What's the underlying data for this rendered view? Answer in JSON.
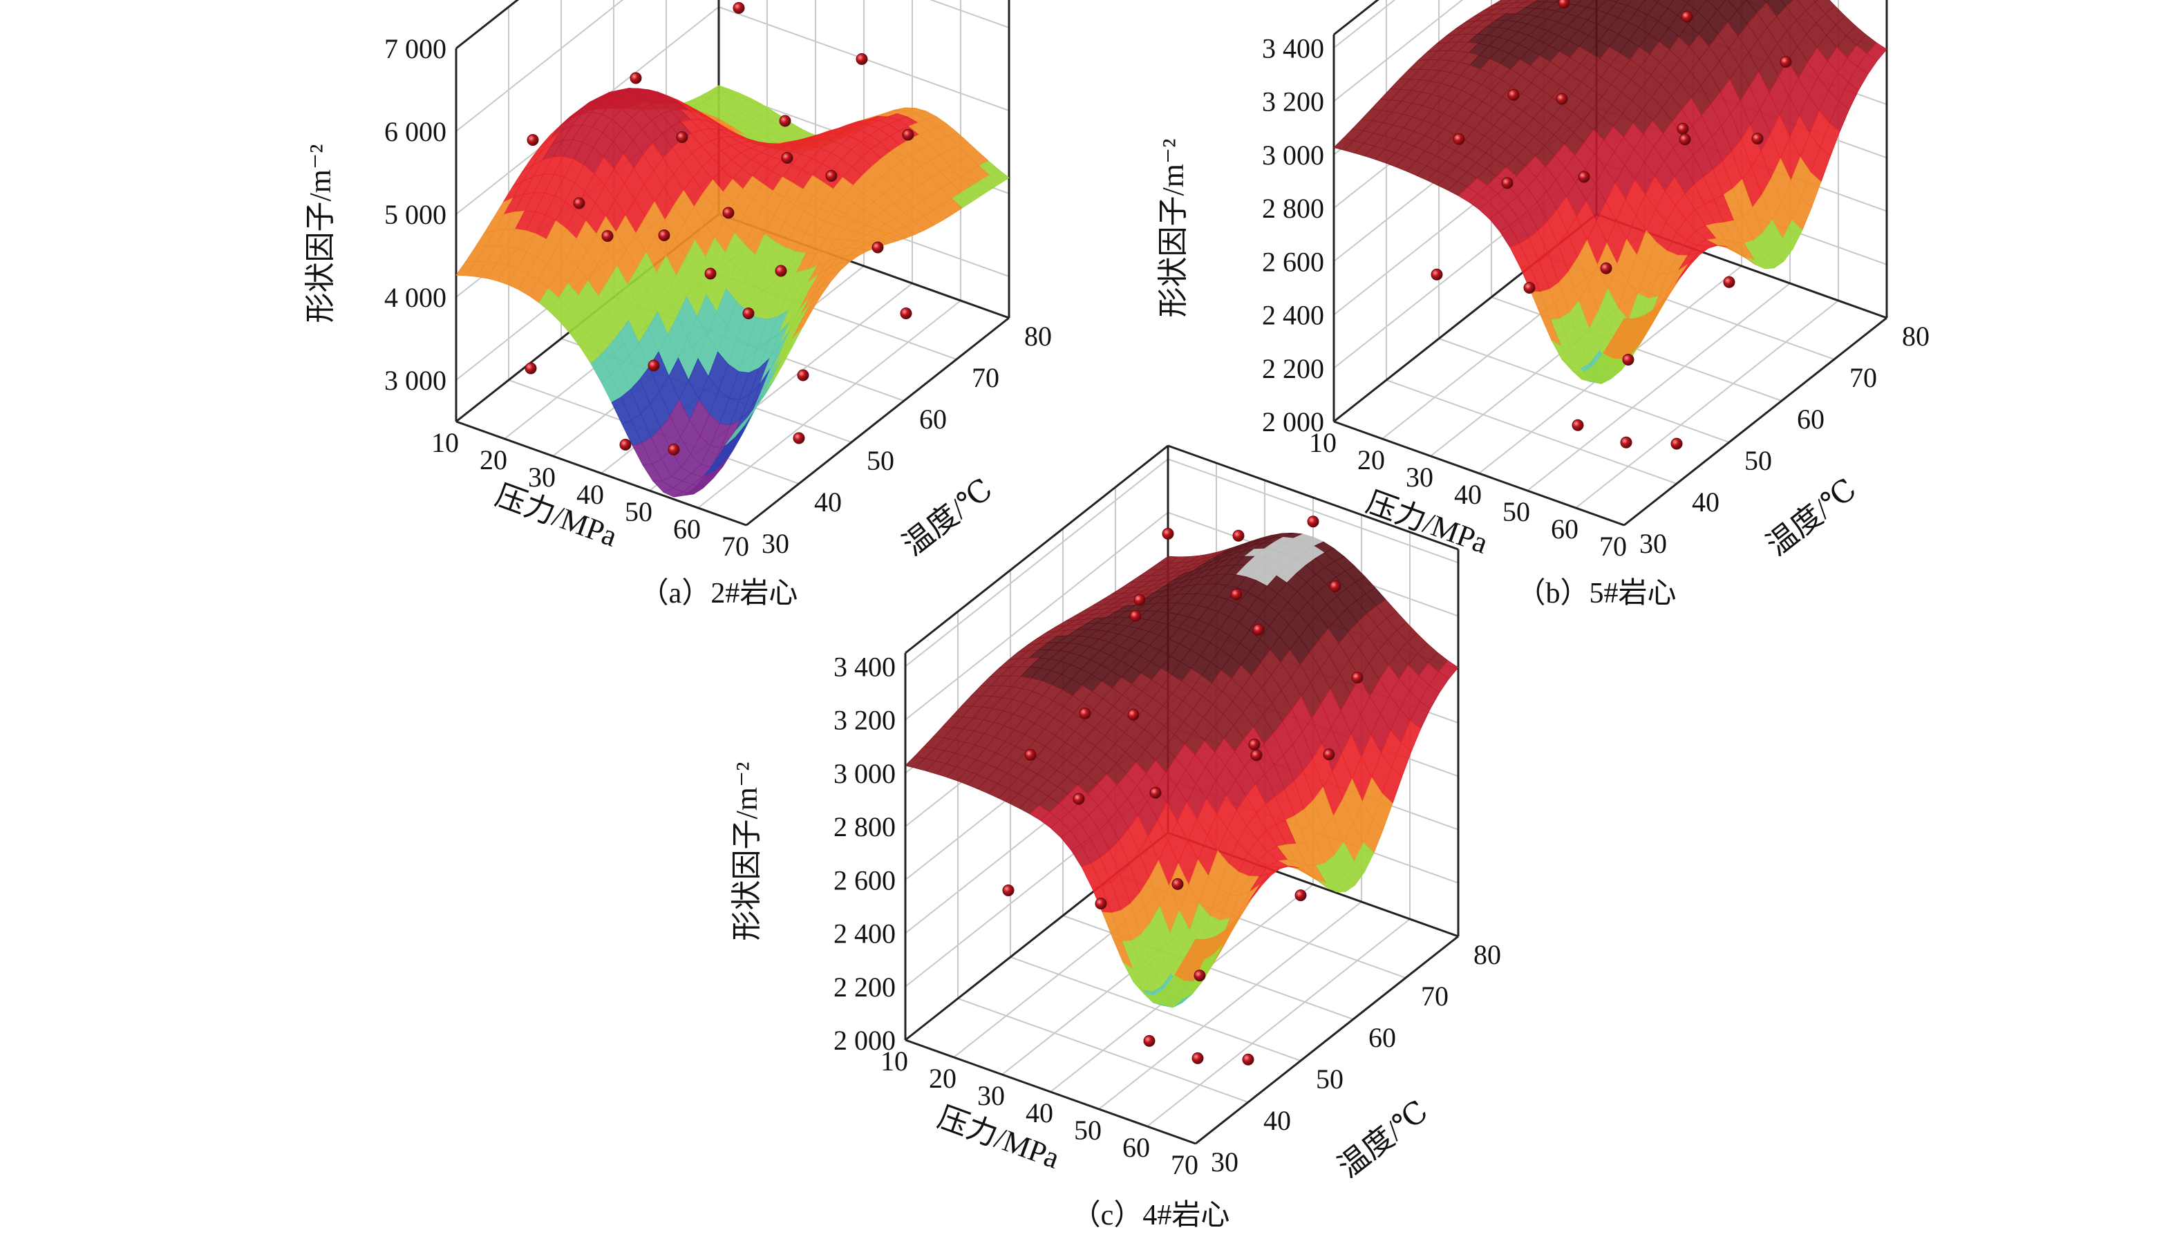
{
  "figure": {
    "panels": [
      {
        "caption": "（a）2#岩心"
      },
      {
        "caption": "（b）5#岩心"
      },
      {
        "caption": "（c）4#岩心"
      }
    ]
  },
  "colors": {
    "grid": "#c8c8c8",
    "axis": "#222222",
    "point_fill": "#c0141c",
    "point_edge": "#6b0a0e",
    "bands": [
      "#7b2a8e",
      "#2f3fb0",
      "#5cc8a8",
      "#9bd63a",
      "#f08c28",
      "#e8242a",
      "#c21a30",
      "#8a1a22",
      "#5a141a",
      "#bcbcbc"
    ]
  },
  "chart_data": [
    {
      "type": "surface3d",
      "title": "（a）2#岩心",
      "xlabel": "压力/MPa",
      "ylabel": "温度/℃",
      "zlabel": "形状因子/m⁻²",
      "x_ticks": [
        "10",
        "20",
        "30",
        "40",
        "50",
        "60",
        "70"
      ],
      "y_ticks": [
        "30",
        "40",
        "50",
        "60",
        "70",
        "80"
      ],
      "z_ticks": [
        "3 000",
        "4 000",
        "5 000",
        "6 000",
        "7 000"
      ],
      "xlim": [
        10,
        70
      ],
      "ylim": [
        30,
        80
      ],
      "zlim": [
        2500,
        7000
      ],
      "surface_model": [
        {
          "cx": 20,
          "cy": 50,
          "a": 1500,
          "s": 12
        },
        {
          "cx": 55,
          "cy": 35,
          "a": -1800,
          "s": 10
        },
        {
          "cx": 45,
          "cy": 70,
          "a": 1200,
          "s": 14
        },
        {
          "cx": 70,
          "cy": 45,
          "a": 900,
          "s": 10
        },
        {
          "cx": 35,
          "cy": 75,
          "a": -900,
          "s": 10
        }
      ],
      "surface_base": 4000,
      "points": [
        [
          10,
          80,
          6900
        ],
        [
          15,
          40,
          5500
        ],
        [
          20,
          55,
          5600
        ],
        [
          25,
          70,
          5800
        ],
        [
          30,
          35,
          5300
        ],
        [
          35,
          50,
          5450
        ],
        [
          40,
          65,
          5000
        ],
        [
          45,
          75,
          5350
        ],
        [
          50,
          45,
          5100
        ],
        [
          55,
          60,
          4900
        ],
        [
          60,
          70,
          5000
        ],
        [
          65,
          35,
          4700
        ],
        [
          70,
          55,
          4600
        ],
        [
          15,
          65,
          3100
        ],
        [
          20,
          35,
          3100
        ],
        [
          30,
          60,
          3200
        ],
        [
          40,
          40,
          3300
        ],
        [
          50,
          55,
          3900
        ],
        [
          55,
          30,
          3100
        ],
        [
          60,
          50,
          3100
        ],
        [
          65,
          65,
          3200
        ],
        [
          70,
          40,
          3050
        ],
        [
          45,
          30,
          2950
        ],
        [
          35,
          70,
          4200
        ],
        [
          25,
          45,
          4300
        ]
      ]
    },
    {
      "type": "surface3d",
      "title": "（b）5#岩心",
      "xlabel": "压力/MPa",
      "ylabel": "温度/℃",
      "zlabel": "形状因子/m⁻²",
      "x_ticks": [
        "10",
        "20",
        "30",
        "40",
        "50",
        "60",
        "70"
      ],
      "y_ticks": [
        "30",
        "40",
        "50",
        "60",
        "70",
        "80"
      ],
      "z_ticks": [
        "2 000",
        "2 200",
        "2 400",
        "2 600",
        "2 800",
        "3 000",
        "3 200",
        "3 400"
      ],
      "xlim": [
        10,
        70
      ],
      "ylim": [
        30,
        80
      ],
      "zlim": [
        2000,
        3450
      ],
      "surface_model": [
        {
          "cx": 40,
          "cy": 75,
          "a": 300,
          "s": 14
        },
        {
          "cx": 60,
          "cy": 35,
          "a": -600,
          "s": 8
        },
        {
          "cx": 70,
          "cy": 60,
          "a": -500,
          "s": 8
        },
        {
          "cx": 20,
          "cy": 50,
          "a": 150,
          "s": 12
        }
      ],
      "surface_base": 3000,
      "points": [
        [
          10,
          80,
          3100
        ],
        [
          15,
          70,
          3050
        ],
        [
          20,
          55,
          2900
        ],
        [
          25,
          60,
          3200
        ],
        [
          30,
          75,
          3300
        ],
        [
          35,
          70,
          3200
        ],
        [
          40,
          80,
          3350
        ],
        [
          45,
          65,
          3200
        ],
        [
          50,
          75,
          3250
        ],
        [
          55,
          55,
          3000
        ],
        [
          60,
          70,
          3050
        ],
        [
          65,
          60,
          2950
        ],
        [
          70,
          50,
          2600
        ],
        [
          15,
          45,
          2350
        ],
        [
          30,
          55,
          2950
        ],
        [
          40,
          50,
          2800
        ],
        [
          50,
          45,
          2600
        ],
        [
          55,
          35,
          2200
        ],
        [
          60,
          40,
          2400
        ],
        [
          65,
          35,
          2200
        ],
        [
          70,
          40,
          2150
        ],
        [
          45,
          35,
          2650
        ],
        [
          35,
          40,
          2900
        ],
        [
          25,
          40,
          3000
        ],
        [
          50,
          60,
          2850
        ]
      ]
    },
    {
      "type": "surface3d",
      "title": "（c）4#岩心",
      "xlabel": "压力/MPa",
      "ylabel": "温度/℃",
      "zlabel": "形状因子/m⁻²",
      "x_ticks": [
        "10",
        "20",
        "30",
        "40",
        "50",
        "60",
        "70"
      ],
      "y_ticks": [
        "30",
        "40",
        "50",
        "60",
        "70",
        "80"
      ],
      "z_ticks": [
        "2 000",
        "2 200",
        "2 400",
        "2 600",
        "2 800",
        "3 000",
        "3 200",
        "3 400"
      ],
      "xlim": [
        10,
        70
      ],
      "ylim": [
        30,
        80
      ],
      "zlim": [
        2000,
        3450
      ],
      "surface_model": [
        {
          "cx": 40,
          "cy": 75,
          "a": 320,
          "s": 14
        },
        {
          "cx": 60,
          "cy": 35,
          "a": -620,
          "s": 8
        },
        {
          "cx": 70,
          "cy": 60,
          "a": -520,
          "s": 8
        },
        {
          "cx": 20,
          "cy": 50,
          "a": 160,
          "s": 12
        }
      ],
      "surface_base": 3000,
      "points": [
        [
          10,
          80,
          3120
        ],
        [
          15,
          70,
          3060
        ],
        [
          20,
          55,
          2900
        ],
        [
          25,
          60,
          3220
        ],
        [
          30,
          75,
          3320
        ],
        [
          35,
          70,
          3210
        ],
        [
          40,
          80,
          3360
        ],
        [
          45,
          65,
          3220
        ],
        [
          50,
          75,
          3260
        ],
        [
          55,
          55,
          3010
        ],
        [
          60,
          70,
          3060
        ],
        [
          65,
          60,
          2960
        ],
        [
          70,
          50,
          2620
        ],
        [
          15,
          45,
          2360
        ],
        [
          30,
          55,
          2960
        ],
        [
          40,
          50,
          2810
        ],
        [
          50,
          45,
          2610
        ],
        [
          55,
          35,
          2210
        ],
        [
          60,
          40,
          2410
        ],
        [
          65,
          35,
          2210
        ],
        [
          70,
          40,
          2160
        ],
        [
          45,
          35,
          2660
        ],
        [
          35,
          40,
          2910
        ],
        [
          25,
          40,
          3010
        ],
        [
          50,
          60,
          2860
        ]
      ]
    }
  ]
}
